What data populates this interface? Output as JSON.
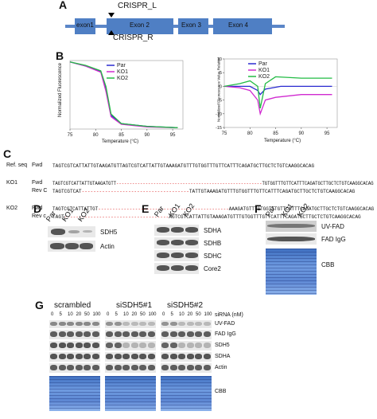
{
  "panels": {
    "A": "A",
    "B": "B",
    "C": "C",
    "D": "D",
    "E": "E",
    "F": "F",
    "G": "G"
  },
  "panelA": {
    "crispr_l": "CRISPR_L",
    "crispr_r": "CRISPR_R",
    "exons": [
      "exon1",
      "Exon 2",
      "Exon 3",
      "Exon 4"
    ]
  },
  "panelB": {
    "left": {
      "ylabel": "Normalized Fluorescence",
      "xlabel": "Temperature (°C)",
      "xticks": [
        "75",
        "80",
        "85",
        "90",
        "95"
      ],
      "legend": [
        "Par",
        "KO1",
        "KO2"
      ]
    },
    "right": {
      "ylabel": "Normalized Fluorescence Value Relative",
      "xlabel": "Temperature (°C)",
      "xticks": [
        "75",
        "80",
        "85",
        "90",
        "95"
      ],
      "yticks": [
        "10",
        "5",
        "0",
        "-5",
        "-10",
        "-15"
      ],
      "legend": [
        "Par",
        "KO1",
        "KO2"
      ]
    },
    "colors": {
      "Par": "#2a2ad0",
      "KO1": "#d02ad0",
      "KO2": "#22bb44"
    }
  },
  "chart_data": [
    {
      "type": "line",
      "xlabel": "Temperature (°C)",
      "ylabel": "Normalized Fluorescence",
      "xlim": [
        75,
        97
      ],
      "series": [
        {
          "name": "Par",
          "x": [
            75,
            78,
            81,
            82,
            83,
            85,
            90,
            96
          ],
          "y": [
            0.98,
            0.92,
            0.84,
            0.6,
            0.2,
            0.08,
            0.04,
            0.02
          ]
        },
        {
          "name": "KO1",
          "x": [
            75,
            78,
            81,
            82,
            83,
            85,
            90,
            96
          ],
          "y": [
            0.98,
            0.92,
            0.83,
            0.55,
            0.18,
            0.07,
            0.03,
            0.02
          ]
        },
        {
          "name": "KO2",
          "x": [
            75,
            78,
            81,
            82,
            83,
            85,
            90,
            96
          ],
          "y": [
            0.98,
            0.93,
            0.85,
            0.62,
            0.22,
            0.08,
            0.04,
            0.02
          ]
        }
      ]
    },
    {
      "type": "line",
      "xlabel": "Temperature (°C)",
      "ylabel": "Normalized Fluorescence Value Relative",
      "xlim": [
        75,
        97
      ],
      "ylim": [
        -15,
        10
      ],
      "series": [
        {
          "name": "Par",
          "x": [
            75,
            80,
            81.5,
            82,
            83,
            86,
            90,
            96
          ],
          "y": [
            0,
            0,
            -1.5,
            -3,
            -1,
            0,
            0,
            0
          ]
        },
        {
          "name": "KO1",
          "x": [
            75,
            78,
            80,
            81.5,
            82,
            83,
            85,
            90,
            96
          ],
          "y": [
            0,
            -0.5,
            -1.5,
            -5,
            -10,
            -5,
            -4,
            -3,
            -3
          ]
        },
        {
          "name": "KO2",
          "x": [
            75,
            78,
            80,
            81.5,
            82,
            83,
            85,
            90,
            96
          ],
          "y": [
            0,
            1,
            2,
            0,
            -8,
            1,
            3.5,
            3,
            3
          ]
        }
      ]
    }
  ],
  "panelC": {
    "rows": [
      {
        "group": "Ref. seq",
        "strand": "Fwd",
        "seq": "TAGTCGTCATTATTGTAAGATGTTAGTCGTCATTATTGTAAAGATGTTTGTGGTTTGTTCATTTCAGATGCTTGCTCTGTCAAGGCACAG",
        "gap": ""
      },
      {
        "group": "KO1",
        "strand": "Fwd",
        "seq": "TAGTCGTCATTATTGTAAGATGTT",
        "gap": "-------------------------------------------------------",
        "seq2": "TGTGGTTTGTTCATTTCAGATGCTTGCTCTGTCAAGGCACAG"
      },
      {
        "group": "",
        "strand": "Rev C",
        "seq": "TAGTCGTCAT",
        "gap": "-------------------------------------",
        "seq2": "TATTGTAAAGATGTTTGTGGTTTGTTCATTTCAGATGCTTGCTCTGTCAAGGCACAG"
      },
      {
        "group": "KO2",
        "strand": "Fwd",
        "seq": "TAGTCGTCATTATTGT",
        "gap": "----------------------------------------------",
        "seq2": "AAAGATGTTTGTGGTTTGTTCATTTCAGATGCTTGCTCTGTCAAGGCACAG"
      },
      {
        "group": "",
        "strand": "Rev c",
        "seq": "TAGT",
        "gap": "------------------------------------",
        "seq2": "AGTCGTCATTATTGTAAAGATGTTTGTGGTTTGTTCATTTCAGATGCTTGCTCTGTCAAGGCACAG"
      }
    ]
  },
  "panelD": {
    "lanes": [
      "Par",
      "KO1",
      "KO2"
    ],
    "rows": [
      "SDH5",
      "Actin"
    ]
  },
  "panelE": {
    "lanes": [
      "Par",
      "KO1",
      "KO2"
    ],
    "rows": [
      "SDHA",
      "SDHB",
      "SDHC",
      "Core2"
    ]
  },
  "panelF": {
    "lanes": [
      "Par",
      "KO1",
      "KO2"
    ],
    "rows": [
      "UV-FAD",
      "FAD IgG",
      "CBB"
    ]
  },
  "panelG": {
    "groups": [
      "scrambled",
      "siSDH5#1",
      "siSDH5#2"
    ],
    "sirna_label": "siRNA (nM)",
    "doses": [
      "0",
      "5",
      "10",
      "20",
      "50",
      "100"
    ],
    "rows": [
      "UV-FAD",
      "FAD IgG",
      "SDH5",
      "SDHA",
      "Actin",
      "CBB"
    ]
  }
}
